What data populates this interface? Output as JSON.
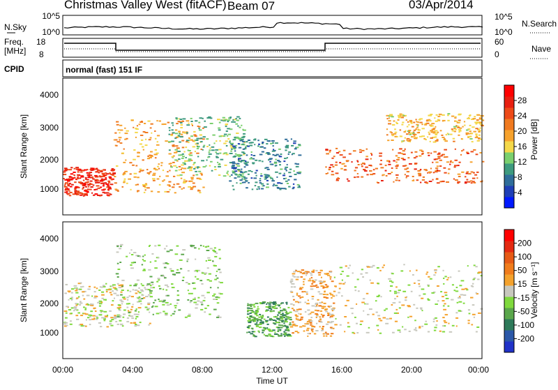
{
  "header": {
    "title": "Christmas Valley West (fitACF)",
    "beam": "Beam 07",
    "date": "03/Apr/2014"
  },
  "sky_panel": {
    "left_label": "N.Sky",
    "right_label": "N.Search",
    "left_ticks": [
      "10^5",
      "10^0"
    ],
    "right_ticks": [
      "10^5",
      "10^0"
    ]
  },
  "freq_panel": {
    "left_label_line1": "Freq.",
    "left_label_line2": "[MHz]",
    "right_label": "Nave",
    "left_ticks": [
      "18",
      "8"
    ],
    "right_ticks": [
      "60",
      "0"
    ]
  },
  "cpid": {
    "label": "CPID",
    "mode": "normal (fast) 151 IF"
  },
  "axes": {
    "ylabel": "Slant Range [km]",
    "xlabel": "Time UT",
    "y_ticks": [
      "4000",
      "3000",
      "2000",
      "1000"
    ],
    "x_ticks": [
      "00:00",
      "04:00",
      "08:00",
      "12:00",
      "16:00",
      "20:00",
      "00:00"
    ]
  },
  "colorbars": {
    "power": {
      "label": "Power [dB]",
      "ticks": [
        "28",
        "24",
        "20",
        "16",
        "12",
        "8",
        "4"
      ],
      "colors": [
        "#0019ff",
        "#1f3fb6",
        "#2f6d9a",
        "#3e9a7f",
        "#7acf6e",
        "#f4d84a",
        "#f6a22d",
        "#f07a20",
        "#ed4a18",
        "#e81f10",
        "#ff0000"
      ]
    },
    "velocity": {
      "label": "Velocity [m s⁻¹]",
      "ticks": [
        "200",
        "100",
        "50",
        "15",
        "-15",
        "-50",
        "-100",
        "-200"
      ],
      "colors": [
        "#2032c8",
        "#2b58a8",
        "#2e7a5a",
        "#5aa64b",
        "#7fd93d",
        "#c8c8be",
        "#f4a22d",
        "#f07c1c",
        "#e65a16",
        "#e42a12",
        "#ff0000"
      ]
    }
  },
  "chart_data": {
    "type": "heatmap",
    "x_range_hours": [
      0,
      24
    ],
    "y_range_km": [
      180,
      4500
    ],
    "power_panel": {
      "echo_regions": [
        {
          "t_start": 0.0,
          "t_end": 2.9,
          "range_min": 800,
          "range_max": 1700,
          "value": 28
        },
        {
          "t_start": 2.9,
          "t_end": 8.0,
          "range_min": 900,
          "range_max": 3200,
          "value": 20
        },
        {
          "t_start": 6.0,
          "t_end": 10.5,
          "range_min": 1400,
          "range_max": 3300,
          "value": 12
        },
        {
          "t_start": 9.5,
          "t_end": 13.5,
          "range_min": 1000,
          "range_max": 2600,
          "value": 8
        },
        {
          "t_start": 15.0,
          "t_end": 24.0,
          "range_min": 1200,
          "range_max": 2300,
          "value": 24
        },
        {
          "t_start": 18.5,
          "t_end": 24.0,
          "range_min": 2500,
          "range_max": 3400,
          "value": 18
        }
      ]
    },
    "velocity_panel": {
      "echo_regions": [
        {
          "t_start": 0.0,
          "t_end": 5.0,
          "range_min": 1200,
          "range_max": 2600,
          "value": 0
        },
        {
          "t_start": 3.0,
          "t_end": 9.0,
          "range_min": 1500,
          "range_max": 3800,
          "value": -50
        },
        {
          "t_start": 10.5,
          "t_end": 13.0,
          "range_min": 900,
          "range_max": 2000,
          "value": -100
        },
        {
          "t_start": 13.0,
          "t_end": 15.5,
          "range_min": 900,
          "range_max": 3000,
          "value": 50
        },
        {
          "t_start": 15.5,
          "t_end": 24.0,
          "range_min": 1000,
          "range_max": 3200,
          "value": 0
        }
      ]
    }
  }
}
